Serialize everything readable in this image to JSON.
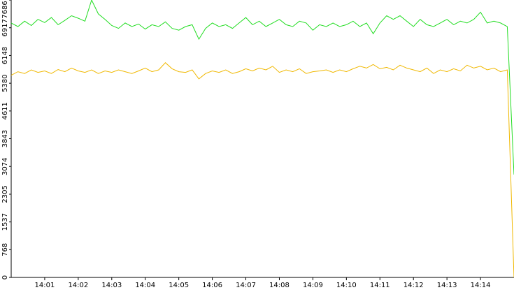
{
  "chart_data": {
    "type": "line",
    "categories": [
      null,
      null,
      null,
      null,
      null,
      "14:01",
      null,
      null,
      null,
      null,
      "14:02",
      null,
      null,
      null,
      null,
      "14:03",
      null,
      null,
      null,
      null,
      "14:04",
      null,
      null,
      null,
      null,
      "14:05",
      null,
      null,
      null,
      null,
      "14:06",
      null,
      null,
      null,
      null,
      "14:07",
      null,
      null,
      null,
      null,
      "14:08",
      null,
      null,
      null,
      null,
      "14:09",
      null,
      null,
      null,
      null,
      "14:10",
      null,
      null,
      null,
      null,
      "14:11",
      null,
      null,
      null,
      null,
      "14:12",
      null,
      null,
      null,
      null,
      "14:13",
      null,
      null,
      null,
      null,
      "14:14",
      null,
      null,
      null,
      null,
      null
    ],
    "series": [
      {
        "color": "#22dd22",
        "values": [
          7050,
          6950,
          7100,
          6980,
          7150,
          7060,
          7200,
          7000,
          7120,
          7250,
          7180,
          7100,
          7686,
          7300,
          7150,
          6980,
          6900,
          7050,
          6950,
          7020,
          6880,
          7000,
          6950,
          7080,
          6900,
          6850,
          6950,
          7000,
          6600,
          6900,
          7050,
          6950,
          7000,
          6900,
          7050,
          7200,
          7000,
          7100,
          6950,
          7050,
          7150,
          7000,
          6950,
          7100,
          7050,
          6850,
          7000,
          6950,
          7050,
          6950,
          7000,
          7100,
          6950,
          7050,
          6750,
          7050,
          7250,
          7150,
          7250,
          7100,
          6950,
          7150,
          7000,
          6950,
          7050,
          7150,
          7000,
          7100,
          7050,
          7150,
          7350,
          7050,
          7100,
          7050,
          6950,
          2850
        ]
      },
      {
        "color": "#f0b800",
        "values": [
          5600,
          5700,
          5650,
          5750,
          5680,
          5720,
          5650,
          5760,
          5700,
          5800,
          5720,
          5680,
          5750,
          5650,
          5720,
          5680,
          5750,
          5700,
          5650,
          5720,
          5800,
          5700,
          5750,
          5950,
          5780,
          5700,
          5680,
          5750,
          5500,
          5650,
          5720,
          5680,
          5750,
          5650,
          5700,
          5780,
          5720,
          5800,
          5750,
          5850,
          5680,
          5750,
          5700,
          5780,
          5650,
          5700,
          5720,
          5750,
          5680,
          5750,
          5700,
          5780,
          5850,
          5800,
          5900,
          5780,
          5820,
          5750,
          5880,
          5800,
          5750,
          5700,
          5800,
          5650,
          5750,
          5700,
          5780,
          5720,
          5880,
          5800,
          5850,
          5750,
          5800,
          5700,
          5750,
          0
        ]
      }
    ],
    "ylim": [
      0,
      7686
    ],
    "yticks": [
      0,
      768,
      1537,
      2305,
      3074,
      3843,
      4611,
      5380,
      6148,
      6917,
      7686
    ]
  }
}
